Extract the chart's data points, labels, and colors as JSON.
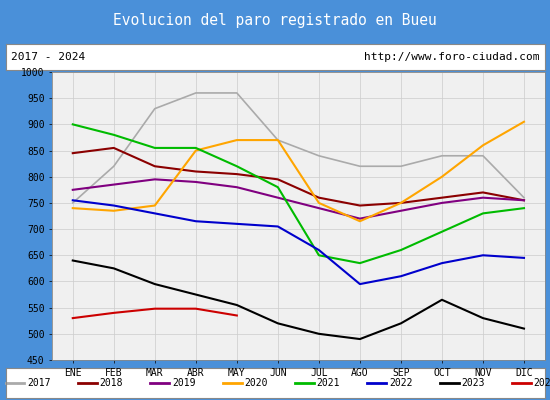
{
  "title": "Evolucion del paro registrado en Bueu",
  "title_bg": "#4a90d9",
  "subtitle_left": "2017 - 2024",
  "subtitle_right": "http://www.foro-ciudad.com",
  "months": [
    "ENE",
    "FEB",
    "MAR",
    "ABR",
    "MAY",
    "JUN",
    "JUL",
    "AGO",
    "SEP",
    "OCT",
    "NOV",
    "DIC"
  ],
  "ylim": [
    450,
    1000
  ],
  "yticks": [
    450,
    500,
    550,
    600,
    650,
    700,
    750,
    800,
    850,
    900,
    950,
    1000
  ],
  "series": {
    "2017": {
      "color": "#aaaaaa",
      "linewidth": 1.2,
      "data": [
        750,
        820,
        930,
        960,
        960,
        870,
        840,
        820,
        820,
        840,
        840,
        760
      ]
    },
    "2018": {
      "color": "#8b0000",
      "linewidth": 1.5,
      "data": [
        845,
        855,
        820,
        810,
        805,
        795,
        760,
        745,
        750,
        760,
        770,
        755
      ]
    },
    "2019": {
      "color": "#800080",
      "linewidth": 1.5,
      "data": [
        775,
        785,
        795,
        790,
        780,
        760,
        740,
        720,
        735,
        750,
        760,
        755
      ]
    },
    "2020": {
      "color": "#ffa500",
      "linewidth": 1.5,
      "data": [
        740,
        735,
        745,
        850,
        870,
        870,
        750,
        715,
        750,
        800,
        860,
        905
      ]
    },
    "2021": {
      "color": "#00bb00",
      "linewidth": 1.5,
      "data": [
        900,
        880,
        855,
        855,
        820,
        780,
        650,
        635,
        660,
        695,
        730,
        740
      ]
    },
    "2022": {
      "color": "#0000cc",
      "linewidth": 1.5,
      "data": [
        755,
        745,
        730,
        715,
        710,
        705,
        660,
        595,
        610,
        635,
        650,
        645
      ]
    },
    "2023": {
      "color": "#000000",
      "linewidth": 1.5,
      "data": [
        640,
        625,
        595,
        575,
        555,
        520,
        500,
        490,
        520,
        565,
        530,
        510
      ]
    },
    "2024": {
      "color": "#cc0000",
      "linewidth": 1.5,
      "data": [
        530,
        540,
        548,
        548,
        535,
        null,
        null,
        null,
        null,
        null,
        null,
        null
      ]
    }
  }
}
